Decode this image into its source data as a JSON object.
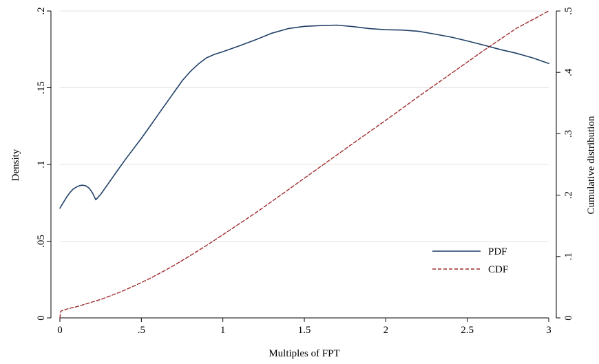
{
  "chart_data": {
    "type": "line",
    "title": "",
    "xlabel": "Multiples of FPT",
    "ylabel_left": "Density",
    "ylabel_right": "Cumulative distribution",
    "xlim": [
      0,
      3
    ],
    "ylim_left": [
      0,
      0.2
    ],
    "ylim_right": [
      0,
      0.5
    ],
    "x_ticks": [
      0,
      0.5,
      1,
      1.5,
      2,
      2.5,
      3
    ],
    "x_tick_labels": [
      "0",
      ".5",
      "1",
      "1.5",
      "2",
      "2.5",
      "3"
    ],
    "y_left_ticks": [
      0,
      0.05,
      0.1,
      0.15,
      0.2
    ],
    "y_left_tick_labels": [
      "0",
      ".05",
      ".1",
      ".15",
      ".2"
    ],
    "y_right_ticks": [
      0,
      0.1,
      0.2,
      0.3,
      0.4,
      0.5
    ],
    "y_right_tick_labels": [
      "0",
      ".1",
      ".2",
      ".3",
      ".4",
      ".5"
    ],
    "grid": true,
    "legend_position": "bottom-right",
    "series": [
      {
        "name": "PDF",
        "axis": "left",
        "color": "#1f3f66",
        "dash": "solid",
        "x": [
          0,
          0.02,
          0.04,
          0.06,
          0.08,
          0.1,
          0.12,
          0.14,
          0.16,
          0.18,
          0.2,
          0.22,
          0.25,
          0.3,
          0.35,
          0.4,
          0.45,
          0.5,
          0.55,
          0.6,
          0.65,
          0.7,
          0.75,
          0.8,
          0.85,
          0.9,
          0.95,
          1.0,
          1.1,
          1.2,
          1.3,
          1.4,
          1.5,
          1.6,
          1.7,
          1.8,
          1.9,
          2.0,
          2.1,
          2.2,
          2.3,
          2.4,
          2.5,
          2.6,
          2.7,
          2.8,
          2.9,
          3.0
        ],
        "y": [
          0.0715,
          0.075,
          0.0785,
          0.0815,
          0.0838,
          0.0852,
          0.0862,
          0.0865,
          0.086,
          0.0845,
          0.0815,
          0.077,
          0.0805,
          0.088,
          0.0955,
          0.103,
          0.11,
          0.117,
          0.1245,
          0.132,
          0.1395,
          0.147,
          0.1545,
          0.1605,
          0.1655,
          0.1695,
          0.1718,
          0.1735,
          0.1772,
          0.1812,
          0.1855,
          0.1885,
          0.19,
          0.1905,
          0.1908,
          0.1898,
          0.1885,
          0.1878,
          0.1876,
          0.1868,
          0.185,
          0.183,
          0.1805,
          0.1778,
          0.175,
          0.1725,
          0.1695,
          0.1658
        ]
      },
      {
        "name": "CDF",
        "axis": "right",
        "color": "#9e2a2b",
        "dash": "dashed",
        "x": [
          0,
          0.005,
          0.05,
          0.1,
          0.15,
          0.2,
          0.25,
          0.3,
          0.35,
          0.4,
          0.45,
          0.5,
          0.55,
          0.6,
          0.65,
          0.7,
          0.75,
          0.8,
          0.9,
          1.0,
          1.2,
          1.4,
          1.6,
          1.8,
          2.0,
          2.2,
          2.4,
          2.6,
          2.8,
          3.0
        ],
        "y": [
          0,
          0.011,
          0.015,
          0.018,
          0.022,
          0.026,
          0.03,
          0.035,
          0.04,
          0.0455,
          0.0515,
          0.0575,
          0.064,
          0.071,
          0.078,
          0.0855,
          0.0935,
          0.1015,
          0.118,
          0.1355,
          0.171,
          0.2085,
          0.2465,
          0.2845,
          0.322,
          0.3605,
          0.398,
          0.4355,
          0.4715,
          0.5
        ]
      }
    ]
  }
}
